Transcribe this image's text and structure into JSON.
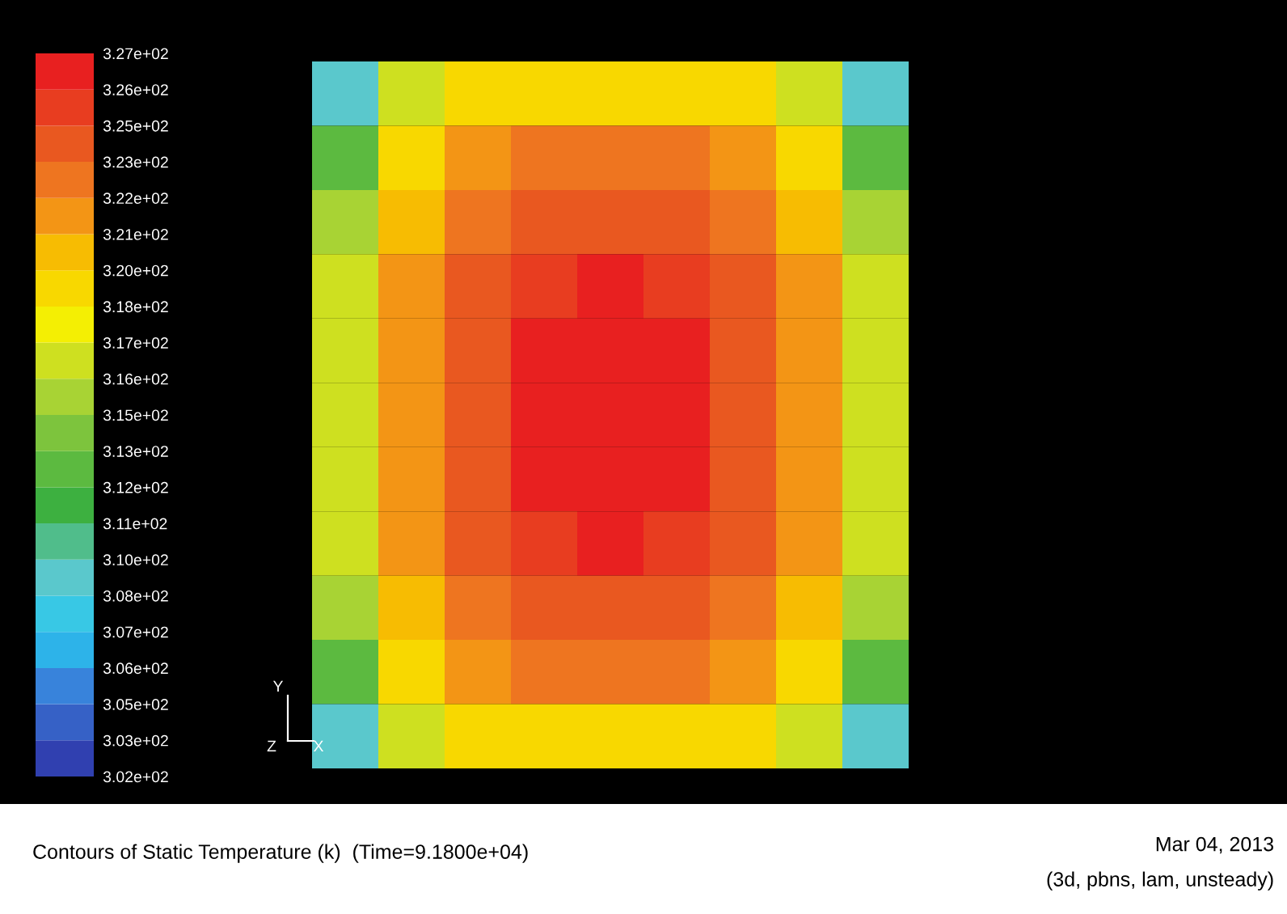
{
  "chart_data": {
    "type": "heatmap",
    "annotations": [
      "Contours of Static Temperature (k)  (Time=9.1800e+04)",
      "Mar 04, 2013",
      "(3d, pbns, lam, unsteady)",
      "Y",
      "Z",
      "X"
    ],
    "categories": [
      null,
      null,
      null,
      null,
      null,
      null,
      null,
      null,
      null
    ],
    "y_categories": [
      null,
      null,
      null,
      null,
      null,
      null,
      null,
      null,
      null,
      null,
      null
    ],
    "cells": [
      [
        309,
        316,
        318.5,
        319,
        319,
        319,
        318.5,
        316,
        309
      ],
      [
        313,
        319,
        321,
        322,
        322,
        322,
        321,
        319,
        313
      ],
      [
        315,
        320,
        322.5,
        323.5,
        324,
        323.5,
        322.5,
        320,
        315
      ],
      [
        316,
        321,
        323.5,
        325,
        326.5,
        325,
        323.5,
        321,
        316
      ],
      [
        316.5,
        321,
        324,
        326.5,
        326.5,
        326.5,
        324,
        321,
        316.5
      ],
      [
        316.5,
        321,
        324,
        326.5,
        326.5,
        326.5,
        324,
        321,
        316.5
      ],
      [
        316.5,
        321,
        324,
        326.5,
        326.5,
        326.5,
        324,
        321,
        316.5
      ],
      [
        316,
        321,
        323.5,
        325,
        326.5,
        325,
        323.5,
        321,
        316
      ],
      [
        315,
        320,
        322.5,
        323.5,
        324,
        323.5,
        322.5,
        320,
        315
      ],
      [
        313,
        319,
        321,
        322,
        322,
        322,
        321,
        319,
        313
      ],
      [
        309,
        316,
        318.5,
        319,
        319,
        319,
        318.5,
        316,
        309
      ]
    ],
    "clim": [
      302,
      327
    ],
    "cticks": [
      {
        "value": 302,
        "label": "3.02e+02"
      },
      {
        "value": 303.25,
        "label": "3.03e+02"
      },
      {
        "value": 304.5,
        "label": "3.05e+02"
      },
      {
        "value": 305.75,
        "label": "3.06e+02"
      },
      {
        "value": 307,
        "label": "3.07e+02"
      },
      {
        "value": 308.25,
        "label": "3.08e+02"
      },
      {
        "value": 309.5,
        "label": "3.10e+02"
      },
      {
        "value": 310.75,
        "label": "3.11e+02"
      },
      {
        "value": 312,
        "label": "3.12e+02"
      },
      {
        "value": 313.25,
        "label": "3.13e+02"
      },
      {
        "value": 314.5,
        "label": "3.15e+02"
      },
      {
        "value": 315.75,
        "label": "3.16e+02"
      },
      {
        "value": 317,
        "label": "3.17e+02"
      },
      {
        "value": 318.25,
        "label": "3.18e+02"
      },
      {
        "value": 319.5,
        "label": "3.20e+02"
      },
      {
        "value": 320.75,
        "label": "3.21e+02"
      },
      {
        "value": 322,
        "label": "3.22e+02"
      },
      {
        "value": 323.25,
        "label": "3.23e+02"
      },
      {
        "value": 324.5,
        "label": "3.25e+02"
      },
      {
        "value": 325.75,
        "label": "3.26e+02"
      },
      {
        "value": 327,
        "label": "3.27e+02"
      }
    ]
  }
}
